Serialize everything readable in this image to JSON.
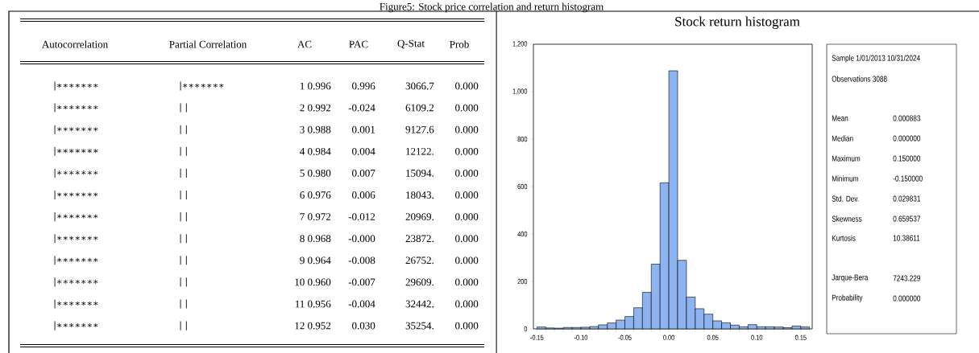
{
  "chart_data": [
    {
      "type": "other",
      "title": "Figure5: Stock price correlation and return histogram",
      "annotations": [
        "Autocorrelation",
        "Partial Correlation",
        "AC",
        "PAC",
        "Q-Stat",
        "Prob",
        "|∗∗∗∗∗∗∗",
        "|∗∗∗∗∗∗∗",
        "1  0.996",
        "0.996",
        "3066.7",
        "0.000",
        "|∗∗∗∗∗∗∗",
        "|   |",
        "2  0.992",
        "-0.024",
        "6109.2",
        "0.000",
        "|∗∗∗∗∗∗∗",
        "|   |",
        "3  0.988",
        "0.001",
        "9127.6",
        "0.000",
        "|∗∗∗∗∗∗∗",
        "|   |",
        "4  0.984",
        "0.004",
        "12122.",
        "0.000",
        "|∗∗∗∗∗∗∗",
        "|   |",
        "5  0.980",
        "0.007",
        "15094.",
        "0.000",
        "|∗∗∗∗∗∗∗",
        "|   |",
        "6  0.976",
        "0.006",
        "18043.",
        "0.000",
        "|∗∗∗∗∗∗∗",
        "|   |",
        "7  0.972",
        "-0.012",
        "20969.",
        "0.000",
        "|∗∗∗∗∗∗∗",
        "|   |",
        "8  0.968",
        "-0.000",
        "23872.",
        "0.000",
        "|∗∗∗∗∗∗∗",
        "|   |",
        "9  0.964",
        "-0.008",
        "26752.",
        "0.000",
        "|∗∗∗∗∗∗∗",
        "|   |",
        "10 0.960",
        "-0.007",
        "29609.",
        "0.000",
        "|∗∗∗∗∗∗∗",
        "|   |",
        "11 0.956",
        "-0.004",
        "32442.",
        "0.000",
        "|∗∗∗∗∗∗∗",
        "|   |",
        "12 0.952",
        "0.030",
        "35254.",
        "0.000"
      ]
    },
    {
      "type": "histogram",
      "title": "Stock return histogram",
      "color": "#8db4f0",
      "bins": [
        -0.15,
        -0.14,
        -0.13,
        -0.12,
        -0.11,
        -0.1,
        -0.09,
        -0.08,
        -0.07,
        -0.06,
        -0.05,
        -0.04,
        -0.03,
        -0.02,
        -0.01,
        0.0,
        0.01,
        0.02,
        0.03,
        0.04,
        0.05,
        0.06,
        0.07,
        0.08,
        0.09,
        0.1,
        0.11,
        0.12,
        0.13,
        0.14,
        0.15,
        0.16
      ],
      "values": [
        8,
        4,
        3,
        6,
        6,
        7,
        10,
        17,
        25,
        37,
        52,
        89,
        154,
        273,
        616,
        1088,
        289,
        134,
        85,
        62,
        34,
        26,
        16,
        9,
        18,
        9,
        9,
        8,
        5,
        12,
        8
      ],
      "xlim": [
        -0.154,
        0.163
      ],
      "ylim": [
        0,
        1200
      ],
      "xticks": [
        {
          "value": -0.15,
          "label": "-0.15"
        },
        {
          "value": -0.14,
          "label": null
        },
        {
          "value": -0.13,
          "label": null
        },
        {
          "value": -0.12,
          "label": null
        },
        {
          "value": -0.11,
          "label": null
        },
        {
          "value": -0.1,
          "label": "-0.10"
        },
        {
          "value": -0.09,
          "label": null
        },
        {
          "value": -0.08,
          "label": null
        },
        {
          "value": -0.07,
          "label": null
        },
        {
          "value": -0.06,
          "label": null
        },
        {
          "value": -0.05,
          "label": "-0.05"
        },
        {
          "value": -0.04,
          "label": null
        },
        {
          "value": -0.03,
          "label": null
        },
        {
          "value": -0.02,
          "label": null
        },
        {
          "value": -0.01,
          "label": null
        },
        {
          "value": 0.0,
          "label": "0.00"
        },
        {
          "value": 0.01,
          "label": null
        },
        {
          "value": 0.02,
          "label": null
        },
        {
          "value": 0.03,
          "label": null
        },
        {
          "value": 0.04,
          "label": null
        },
        {
          "value": 0.05,
          "label": "0.05"
        },
        {
          "value": 0.06,
          "label": null
        },
        {
          "value": 0.07,
          "label": null
        },
        {
          "value": 0.08,
          "label": null
        },
        {
          "value": 0.09,
          "label": null
        },
        {
          "value": 0.1,
          "label": "0.10"
        },
        {
          "value": 0.11,
          "label": null
        },
        {
          "value": 0.12,
          "label": null
        },
        {
          "value": 0.13,
          "label": null
        },
        {
          "value": 0.14,
          "label": null
        },
        {
          "value": 0.15,
          "label": "0.15"
        },
        {
          "value": 0.16,
          "label": null
        }
      ],
      "yticks": [
        0,
        200,
        400,
        600,
        800,
        {
          "value": 1000,
          "label": "1,000"
        },
        {
          "value": 1200,
          "label": "1,200"
        }
      ],
      "annotations": [
        "Sample 1/01/2013 10/31/2024",
        "Observations 3088",
        "Mean",
        "0.000883",
        "Median",
        "0.000000",
        "Maximum",
        "0.150000",
        "Minimum",
        "-0.150000",
        "Std. Dev.",
        "0.029831",
        "Skewness",
        "0.659537",
        "Kurtosis",
        "10.38611",
        "Jarque-Bera",
        "7243.229",
        "Probability",
        "0.000000"
      ]
    }
  ]
}
